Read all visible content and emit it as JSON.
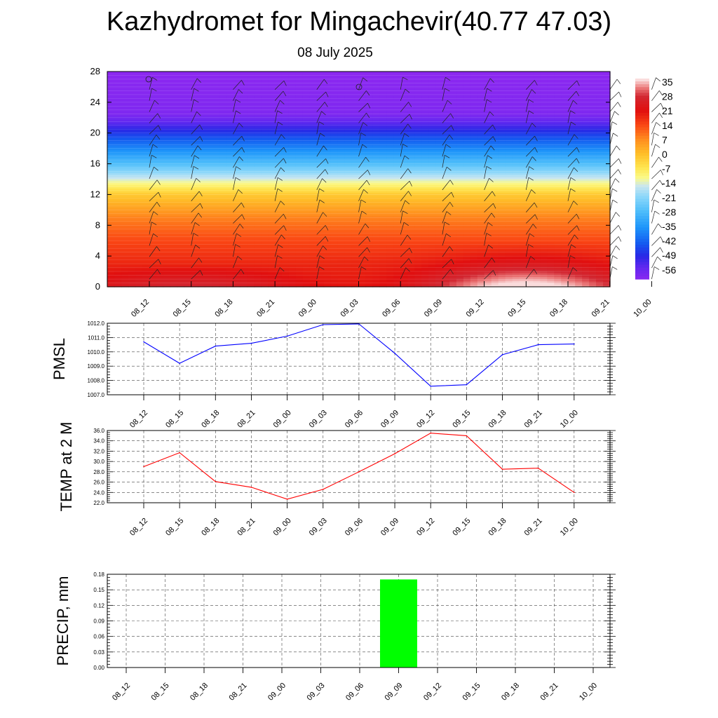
{
  "title": "Kazhydromet for Mingachevir(40.77 47.03)",
  "subtitle": "08 July 2025",
  "chart_data": [
    {
      "type": "heatmap",
      "x_ticks": [
        "08_12",
        "08_15",
        "08_18",
        "08_21",
        "09_00",
        "09_03",
        "09_06",
        "09_09",
        "09_12",
        "09_15",
        "09_18",
        "09_21",
        "10_00"
      ],
      "y_ticks": [
        "0",
        "4",
        "8",
        "12",
        "16",
        "20",
        "24",
        "28"
      ],
      "ylim": [
        0,
        28
      ],
      "colorbar_labels": [
        "35",
        "28",
        "21",
        "14",
        "7",
        "0",
        "-7",
        "-14",
        "-21",
        "-28",
        "-35",
        "-42",
        "-49",
        "-56"
      ],
      "temperature_profile": {
        "heights": [
          0,
          3,
          6,
          9,
          12,
          13.5,
          16,
          18,
          20,
          21.5,
          22.5,
          28
        ],
        "values": [
          24,
          18,
          14,
          8,
          -2,
          -12,
          -28,
          -38,
          -48,
          -56,
          -60,
          -62
        ]
      },
      "surface_warm_peak": {
        "center_x_index": 9.0,
        "value": 35
      },
      "wind_barbs": "present"
    },
    {
      "type": "line",
      "ylabel": "PMSL",
      "x_ticks": [
        "08_12",
        "08_15",
        "08_18",
        "08_21",
        "09_00",
        "09_03",
        "09_06",
        "09_09",
        "09_12",
        "09_15",
        "09_18",
        "09_21",
        "10_00"
      ],
      "y_ticks": [
        "1007.0",
        "1008.0",
        "1009.0",
        "1010.0",
        "1011.0",
        "1012.0"
      ],
      "ylim": [
        1007,
        1012
      ],
      "color": "#0000ff",
      "values": [
        1010.7,
        1009.2,
        1010.4,
        1010.6,
        1011.1,
        1011.9,
        1011.95,
        1009.9,
        1007.6,
        1007.7,
        1009.8,
        1010.5,
        1010.55
      ]
    },
    {
      "type": "line",
      "ylabel": "TEMP at 2 M",
      "x_ticks": [
        "08_12",
        "08_15",
        "08_18",
        "08_21",
        "09_00",
        "09_03",
        "09_06",
        "09_09",
        "09_12",
        "09_15",
        "09_18",
        "09_21",
        "10_00"
      ],
      "y_ticks": [
        "22.0",
        "24.0",
        "26.0",
        "28.0",
        "30.0",
        "32.0",
        "34.0",
        "36.0"
      ],
      "ylim": [
        22,
        36
      ],
      "color": "#ff0000",
      "values": [
        29.0,
        31.7,
        26.1,
        25.0,
        22.7,
        24.6,
        28.0,
        31.5,
        35.5,
        35.0,
        28.5,
        28.7,
        24.0
      ]
    },
    {
      "type": "bar",
      "ylabel": "PRECIP, mm",
      "x_ticks": [
        "08_12",
        "08_15",
        "08_18",
        "08_21",
        "09_00",
        "09_03",
        "09_06",
        "09_09",
        "09_12",
        "09_15",
        "09_18",
        "09_21",
        "10_00"
      ],
      "y_ticks": [
        "0.00",
        "0.03",
        "0.06",
        "0.09",
        "0.12",
        "0.15",
        "0.18"
      ],
      "ylim": [
        0,
        0.18
      ],
      "color": "#00ff00",
      "values": [
        0,
        0,
        0,
        0,
        0,
        0,
        0,
        0.17,
        0,
        0,
        0,
        0,
        0
      ]
    }
  ]
}
